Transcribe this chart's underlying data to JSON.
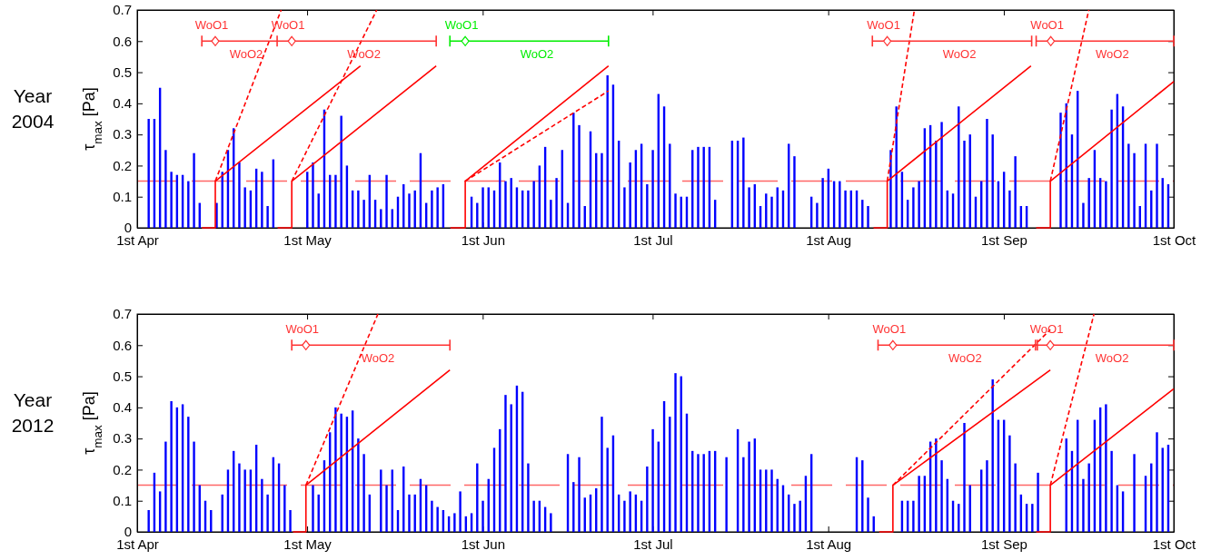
{
  "chart_data": [
    {
      "type": "bar",
      "title": "Year 2004",
      "ylabel": "τ$_{max}$ [Pa]",
      "xlim": [
        "2004-04-01",
        "2004-10-01"
      ],
      "xticks": [
        {
          "value": "2004-04-01",
          "label": "1st Apr"
        },
        {
          "value": "2004-05-01",
          "label": "1st May"
        },
        {
          "value": "2004-06-01",
          "label": "1st Jun"
        },
        {
          "value": "2004-07-01",
          "label": "1st Jul"
        },
        {
          "value": "2004-08-01",
          "label": "1st Aug"
        },
        {
          "value": "2004-09-01",
          "label": "1st Sep"
        },
        {
          "value": "2004-10-01",
          "label": "1st Oct"
        }
      ],
      "ylim": [
        0,
        0.7
      ],
      "yticks": [
        0,
        0.1,
        0.2,
        0.3,
        0.4,
        0.5,
        0.6,
        0.7
      ],
      "ref_lines": [
        {
          "axis": "y",
          "value": 0.15,
          "color": "#ff6666",
          "line_style": "dashed"
        }
      ],
      "x": [
        "2004-04-03",
        "2004-04-04",
        "2004-04-05",
        "2004-04-06",
        "2004-04-07",
        "2004-04-08",
        "2004-04-09",
        "2004-04-10",
        "2004-04-11",
        "2004-04-12",
        "2004-04-13",
        "2004-04-14",
        "2004-04-15",
        "2004-04-16",
        "2004-04-17",
        "2004-04-18",
        "2004-04-19",
        "2004-04-20",
        "2004-04-21",
        "2004-04-22",
        "2004-04-23",
        "2004-04-24",
        "2004-04-25",
        "2004-04-26",
        "2004-04-27",
        "2004-04-28",
        "2004-04-29",
        "2004-04-30",
        "2004-05-01",
        "2004-05-02",
        "2004-05-03",
        "2004-05-04",
        "2004-05-05",
        "2004-05-06",
        "2004-05-07",
        "2004-05-08",
        "2004-05-09",
        "2004-05-10",
        "2004-05-11",
        "2004-05-12",
        "2004-05-13",
        "2004-05-14",
        "2004-05-15",
        "2004-05-16",
        "2004-05-17",
        "2004-05-18",
        "2004-05-19",
        "2004-05-20",
        "2004-05-21",
        "2004-05-22",
        "2004-05-23",
        "2004-05-24",
        "2004-05-25",
        "2004-05-26",
        "2004-05-27",
        "2004-05-28",
        "2004-05-29",
        "2004-05-30",
        "2004-05-31",
        "2004-06-01",
        "2004-06-02",
        "2004-06-03",
        "2004-06-04",
        "2004-06-05",
        "2004-06-06",
        "2004-06-07",
        "2004-06-08",
        "2004-06-09",
        "2004-06-10",
        "2004-06-11",
        "2004-06-12",
        "2004-06-13",
        "2004-06-14",
        "2004-06-15",
        "2004-06-16",
        "2004-06-17",
        "2004-06-18",
        "2004-06-19",
        "2004-06-20",
        "2004-06-21",
        "2004-06-22",
        "2004-06-23",
        "2004-06-24",
        "2004-06-25",
        "2004-06-26",
        "2004-06-27",
        "2004-06-28",
        "2004-06-29",
        "2004-06-30",
        "2004-07-01",
        "2004-07-02",
        "2004-07-03",
        "2004-07-04",
        "2004-07-05",
        "2004-07-06",
        "2004-07-07",
        "2004-07-08",
        "2004-07-09",
        "2004-07-10",
        "2004-07-11",
        "2004-07-12",
        "2004-07-13",
        "2004-07-14",
        "2004-07-15",
        "2004-07-16",
        "2004-07-17",
        "2004-07-18",
        "2004-07-19",
        "2004-07-20",
        "2004-07-21",
        "2004-07-22",
        "2004-07-23",
        "2004-07-24",
        "2004-07-25",
        "2004-07-26",
        "2004-07-27",
        "2004-07-28",
        "2004-07-29",
        "2004-07-30",
        "2004-07-31",
        "2004-08-01",
        "2004-08-02",
        "2004-08-03",
        "2004-08-04",
        "2004-08-05",
        "2004-08-06",
        "2004-08-07",
        "2004-08-08",
        "2004-08-09",
        "2004-08-10",
        "2004-08-11",
        "2004-08-12",
        "2004-08-13",
        "2004-08-14",
        "2004-08-15",
        "2004-08-16",
        "2004-08-17",
        "2004-08-18",
        "2004-08-19",
        "2004-08-20",
        "2004-08-21",
        "2004-08-22",
        "2004-08-23",
        "2004-08-24",
        "2004-08-25",
        "2004-08-26",
        "2004-08-27",
        "2004-08-28",
        "2004-08-29",
        "2004-08-30",
        "2004-08-31",
        "2004-09-01",
        "2004-09-02",
        "2004-09-03",
        "2004-09-04",
        "2004-09-05",
        "2004-09-06",
        "2004-09-07",
        "2004-09-08",
        "2004-09-09",
        "2004-09-10",
        "2004-09-11",
        "2004-09-12",
        "2004-09-13",
        "2004-09-14",
        "2004-09-15",
        "2004-09-16",
        "2004-09-17",
        "2004-09-18",
        "2004-09-19",
        "2004-09-20",
        "2004-09-21",
        "2004-09-22",
        "2004-09-23",
        "2004-09-24",
        "2004-09-25",
        "2004-09-26",
        "2004-09-27",
        "2004-09-28",
        "2004-09-29",
        "2004-09-30"
      ],
      "series": [
        {
          "color": "#0000ff",
          "values": [
            0.35,
            0.35,
            0.45,
            0.25,
            0.18,
            0.17,
            0.17,
            0.15,
            0.24,
            0.08,
            null,
            null,
            0.08,
            0.18,
            0.25,
            0.32,
            0.21,
            0.13,
            0.12,
            0.19,
            0.18,
            0.07,
            0.22,
            null,
            null,
            null,
            null,
            null,
            0.18,
            0.21,
            0.11,
            0.38,
            0.17,
            0.17,
            0.36,
            0.2,
            0.12,
            0.12,
            0.09,
            0.17,
            0.09,
            0.06,
            0.17,
            0.06,
            0.1,
            0.14,
            0.11,
            0.12,
            0.24,
            0.08,
            0.12,
            0.13,
            0.14,
            null,
            null,
            null,
            null,
            0.1,
            0.08,
            0.13,
            0.13,
            0.12,
            0.21,
            0.15,
            0.16,
            0.13,
            0.12,
            0.12,
            0.15,
            0.2,
            0.26,
            0.09,
            0.16,
            0.25,
            0.08,
            0.37,
            0.33,
            0.07,
            0.31,
            0.24,
            0.24,
            0.49,
            0.46,
            0.28,
            0.13,
            0.21,
            0.25,
            0.27,
            0.14,
            0.25,
            0.43,
            0.39,
            0.27,
            0.11,
            0.1,
            0.1,
            0.25,
            0.26,
            0.26,
            0.26,
            0.09,
            null,
            null,
            0.28,
            0.28,
            0.29,
            0.13,
            0.14,
            0.07,
            0.11,
            0.1,
            0.13,
            0.12,
            0.27,
            0.23,
            null,
            null,
            0.1,
            0.08,
            0.16,
            0.19,
            0.15,
            0.15,
            0.12,
            0.12,
            0.12,
            0.09,
            0.07,
            null,
            null,
            null,
            0.25,
            0.39,
            0.18,
            0.09,
            0.13,
            0.15,
            0.32,
            0.33,
            0.28,
            0.34,
            0.12,
            0.11,
            0.39,
            0.28,
            0.3,
            0.1,
            0.15,
            0.35,
            0.3,
            0.15,
            0.18,
            0.12,
            0.23,
            0.07,
            0.07,
            null,
            null,
            null,
            null,
            null,
            0.37,
            0.4,
            0.3,
            0.44,
            0.08,
            0.16,
            0.25,
            0.16,
            0.15,
            0.38,
            0.43,
            0.39,
            0.27,
            0.24,
            0.07,
            0.27,
            0.12,
            0.27,
            0.16,
            0.14
          ]
        },
        {
          "type": "line",
          "color": "#ff0000",
          "x": [
            "2004-04-12T10:00",
            "2004-04-14T19:00",
            "2004-04-14T19:00",
            "2004-05-10T10:00"
          ],
          "values": [
            0,
            0,
            0.15,
            0.52
          ]
        },
        {
          "type": "line",
          "color": "#ff0000",
          "line_style": "dashed",
          "x": [
            "2004-04-14T19:00",
            "2004-04-26T10:00"
          ],
          "values": [
            0.15,
            0.7
          ]
        },
        {
          "type": "line",
          "color": "#ff0000",
          "x": [
            "2004-04-25T19:00",
            "2004-04-28T07:00",
            "2004-04-28T07:00",
            "2004-05-23T19:00"
          ],
          "values": [
            0,
            0,
            0.15,
            0.52
          ]
        },
        {
          "type": "line",
          "color": "#ff0000",
          "line_style": "dashed",
          "x": [
            "2004-04-28T07:00",
            "2004-05-13T07:00"
          ],
          "values": [
            0.15,
            0.7
          ]
        },
        {
          "type": "line",
          "color": "#ff0000",
          "x": [
            "2004-05-26T07:00",
            "2004-05-28T22:00",
            "2004-05-28T22:00",
            "2004-06-23T05:00"
          ],
          "values": [
            0,
            0,
            0.15,
            0.52
          ]
        },
        {
          "type": "line",
          "color": "#ff0000",
          "line_style": "dashed",
          "x": [
            "2004-05-28T22:00",
            "2004-06-23T05:00"
          ],
          "values": [
            0.15,
            0.44
          ]
        },
        {
          "type": "line",
          "color": "#ff0000",
          "x": [
            "2004-08-09T00:00",
            "2004-08-11T10:00",
            "2004-08-11T10:00",
            "2004-09-05T19:00"
          ],
          "values": [
            0,
            0,
            0.15,
            0.52
          ]
        },
        {
          "type": "line",
          "color": "#ff0000",
          "line_style": "dashed",
          "x": [
            "2004-08-11T10:00",
            "2004-08-16T05:00"
          ],
          "values": [
            0.15,
            0.7
          ]
        },
        {
          "type": "line",
          "color": "#ff0000",
          "x": [
            "2004-09-06T17:00",
            "2004-09-09T05:00",
            "2004-09-09T05:00",
            "2004-10-01T00:00"
          ],
          "values": [
            0,
            0,
            0.15,
            0.47
          ]
        },
        {
          "type": "line",
          "color": "#ff0000",
          "line_style": "dashed",
          "x": [
            "2004-09-09T05:00",
            "2004-09-16T00:00"
          ],
          "values": [
            0.15,
            0.7
          ]
        },
        {
          "type": "line",
          "color": "#ff3333",
          "x": [
            "2004-04-12T10:00",
            "2004-04-25T17:00",
            "2004-05-23T19:00"
          ],
          "values": [
            0.6,
            0.6,
            0.6
          ]
        },
        {
          "type": "line",
          "color": "#00ee00",
          "x": [
            "2004-05-26T05:00",
            "2004-06-23T05:00"
          ],
          "values": [
            0.6,
            0.6
          ]
        },
        {
          "type": "line",
          "color": "#ff3333",
          "x": [
            "2004-08-08T19:00",
            "2004-09-05T22:00"
          ],
          "values": [
            0.6,
            0.6
          ]
        },
        {
          "type": "line",
          "color": "#ff3333",
          "x": [
            "2004-09-06T17:00",
            "2004-10-01T00:00"
          ],
          "values": [
            0.6,
            0.6
          ]
        },
        {
          "type": "scatter",
          "marker": "diamond",
          "x": [
            "2004-04-14T19:00",
            "2004-04-28T07:00",
            "2004-05-28T22:00",
            "2004-08-11T10:00",
            "2004-09-09T07:00"
          ],
          "values": [
            0.6,
            0.6,
            0.6,
            0.6,
            0.6
          ],
          "colors": [
            "#ff3333",
            "#ff3333",
            "#00ee00",
            "#ff3333",
            "#ff3333"
          ]
        }
      ],
      "annotations": [
        "WoO1",
        "WoO2",
        "WoO1",
        "WoO2",
        "WoO1",
        "WoO2",
        "WoO1",
        "WoO2",
        "WoO1",
        "WoO2"
      ]
    },
    {
      "type": "bar",
      "title": "Year 2012",
      "ylabel": "τ$_{max}$ [Pa]",
      "xlim": [
        "2012-04-01",
        "2012-10-01"
      ],
      "xticks": [
        {
          "value": "2012-04-01",
          "label": "1st Apr"
        },
        {
          "value": "2012-05-01",
          "label": "1st May"
        },
        {
          "value": "2012-06-01",
          "label": "1st Jun"
        },
        {
          "value": "2012-07-01",
          "label": "1st Jul"
        },
        {
          "value": "2012-08-01",
          "label": "1st Aug"
        },
        {
          "value": "2012-09-01",
          "label": "1st Sep"
        },
        {
          "value": "2012-10-01",
          "label": "1st Oct"
        }
      ],
      "ylim": [
        0,
        0.7
      ],
      "yticks": [
        0,
        0.1,
        0.2,
        0.3,
        0.4,
        0.5,
        0.6,
        0.7
      ],
      "ref_lines": [
        {
          "axis": "y",
          "value": 0.15,
          "color": "#ff6666",
          "line_style": "dashed"
        }
      ],
      "x": [
        "2012-04-03",
        "2012-04-04",
        "2012-04-05",
        "2012-04-06",
        "2012-04-07",
        "2012-04-08",
        "2012-04-09",
        "2012-04-10",
        "2012-04-11",
        "2012-04-12",
        "2012-04-13",
        "2012-04-14",
        "2012-04-15",
        "2012-04-16",
        "2012-04-17",
        "2012-04-18",
        "2012-04-19",
        "2012-04-20",
        "2012-04-21",
        "2012-04-22",
        "2012-04-23",
        "2012-04-24",
        "2012-04-25",
        "2012-04-26",
        "2012-04-27",
        "2012-04-28",
        "2012-04-29",
        "2012-04-30",
        "2012-05-01",
        "2012-05-02",
        "2012-05-03",
        "2012-05-04",
        "2012-05-05",
        "2012-05-06",
        "2012-05-07",
        "2012-05-08",
        "2012-05-09",
        "2012-05-10",
        "2012-05-11",
        "2012-05-12",
        "2012-05-13",
        "2012-05-14",
        "2012-05-15",
        "2012-05-16",
        "2012-05-17",
        "2012-05-18",
        "2012-05-19",
        "2012-05-20",
        "2012-05-21",
        "2012-05-22",
        "2012-05-23",
        "2012-05-24",
        "2012-05-25",
        "2012-05-26",
        "2012-05-27",
        "2012-05-28",
        "2012-05-29",
        "2012-05-30",
        "2012-05-31",
        "2012-06-01",
        "2012-06-02",
        "2012-06-03",
        "2012-06-04",
        "2012-06-05",
        "2012-06-06",
        "2012-06-07",
        "2012-06-08",
        "2012-06-09",
        "2012-06-10",
        "2012-06-11",
        "2012-06-12",
        "2012-06-13",
        "2012-06-14",
        "2012-06-15",
        "2012-06-16",
        "2012-06-17",
        "2012-06-18",
        "2012-06-19",
        "2012-06-20",
        "2012-06-21",
        "2012-06-22",
        "2012-06-23",
        "2012-06-24",
        "2012-06-25",
        "2012-06-26",
        "2012-06-27",
        "2012-06-28",
        "2012-06-29",
        "2012-06-30",
        "2012-07-01",
        "2012-07-02",
        "2012-07-03",
        "2012-07-04",
        "2012-07-05",
        "2012-07-06",
        "2012-07-07",
        "2012-07-08",
        "2012-07-09",
        "2012-07-10",
        "2012-07-11",
        "2012-07-12",
        "2012-07-13",
        "2012-07-14",
        "2012-07-15",
        "2012-07-16",
        "2012-07-17",
        "2012-07-18",
        "2012-07-19",
        "2012-07-20",
        "2012-07-21",
        "2012-07-22",
        "2012-07-23",
        "2012-07-24",
        "2012-07-25",
        "2012-07-26",
        "2012-07-27",
        "2012-07-28",
        "2012-07-29",
        "2012-07-30",
        "2012-07-31",
        "2012-08-01",
        "2012-08-02",
        "2012-08-03",
        "2012-08-04",
        "2012-08-05",
        "2012-08-06",
        "2012-08-07",
        "2012-08-08",
        "2012-08-09",
        "2012-08-10",
        "2012-08-11",
        "2012-08-12",
        "2012-08-13",
        "2012-08-14",
        "2012-08-15",
        "2012-08-16",
        "2012-08-17",
        "2012-08-18",
        "2012-08-19",
        "2012-08-20",
        "2012-08-21",
        "2012-08-22",
        "2012-08-23",
        "2012-08-24",
        "2012-08-25",
        "2012-08-26",
        "2012-08-27",
        "2012-08-28",
        "2012-08-29",
        "2012-08-30",
        "2012-08-31",
        "2012-09-01",
        "2012-09-02",
        "2012-09-03",
        "2012-09-04",
        "2012-09-05",
        "2012-09-06",
        "2012-09-07",
        "2012-09-08",
        "2012-09-09",
        "2012-09-10",
        "2012-09-11",
        "2012-09-12",
        "2012-09-13",
        "2012-09-14",
        "2012-09-15",
        "2012-09-16",
        "2012-09-17",
        "2012-09-18",
        "2012-09-19",
        "2012-09-20",
        "2012-09-21",
        "2012-09-22",
        "2012-09-23",
        "2012-09-24",
        "2012-09-25",
        "2012-09-26",
        "2012-09-27",
        "2012-09-28",
        "2012-09-29",
        "2012-09-30"
      ],
      "series": [
        {
          "color": "#0000ff",
          "values": [
            0.07,
            0.19,
            0.13,
            0.29,
            0.42,
            0.4,
            0.41,
            0.37,
            0.29,
            0.15,
            0.1,
            0.07,
            null,
            0.12,
            0.2,
            0.26,
            0.22,
            0.2,
            0.2,
            0.28,
            0.17,
            0.12,
            0.24,
            0.22,
            0.15,
            0.07,
            null,
            null,
            null,
            0.15,
            0.12,
            0.23,
            0.32,
            0.4,
            0.38,
            0.37,
            0.39,
            0.3,
            0.25,
            0.12,
            null,
            0.2,
            0.15,
            0.2,
            0.07,
            0.21,
            0.12,
            0.12,
            0.17,
            0.15,
            0.1,
            0.08,
            0.07,
            0.05,
            0.06,
            0.13,
            0.05,
            0.06,
            0.22,
            0.1,
            0.17,
            0.27,
            0.33,
            0.44,
            0.41,
            0.47,
            0.45,
            0.22,
            0.1,
            0.1,
            0.08,
            0.06,
            null,
            null,
            0.25,
            0.16,
            0.24,
            0.11,
            0.12,
            0.14,
            0.37,
            0.27,
            0.31,
            0.12,
            0.1,
            0.13,
            0.12,
            0.1,
            0.21,
            0.33,
            0.29,
            0.42,
            0.37,
            0.51,
            0.5,
            0.38,
            0.26,
            0.25,
            0.25,
            0.26,
            0.26,
            null,
            0.24,
            null,
            0.33,
            0.24,
            0.29,
            0.3,
            0.2,
            0.2,
            0.2,
            0.17,
            0.15,
            0.12,
            0.09,
            0.1,
            0.18,
            0.25,
            null,
            null,
            null,
            null,
            null,
            null,
            null,
            0.24,
            0.23,
            0.11,
            0.05,
            null,
            null,
            null,
            null,
            0.1,
            0.1,
            0.1,
            0.18,
            0.18,
            0.29,
            0.3,
            0.23,
            0.17,
            0.1,
            0.09,
            0.35,
            0.15,
            null,
            0.2,
            0.23,
            0.49,
            0.36,
            0.36,
            0.31,
            0.22,
            0.12,
            0.09,
            0.09,
            0.19,
            null,
            null,
            null,
            null,
            0.3,
            0.26,
            0.36,
            0.17,
            0.22,
            0.36,
            0.4,
            0.41,
            0.26,
            0.15,
            0.13,
            null,
            0.25,
            null,
            0.18,
            0.22,
            0.32,
            0.27,
            0.28
          ]
        },
        {
          "type": "line",
          "color": "#ff0000",
          "x": [
            "2012-04-28T12:00",
            "2012-04-30T19:00",
            "2012-04-30T19:00",
            "2012-05-26T05:00"
          ],
          "values": [
            0,
            0,
            0.15,
            0.52
          ]
        },
        {
          "type": "line",
          "color": "#ff0000",
          "line_style": "dashed",
          "x": [
            "2012-04-30T19:00",
            "2012-05-13T12:00"
          ],
          "values": [
            0.15,
            0.7
          ]
        },
        {
          "type": "line",
          "color": "#ff0000",
          "x": [
            "2012-08-10T00:00",
            "2012-08-12T10:00",
            "2012-08-12T10:00",
            "2012-09-09T05:00"
          ],
          "values": [
            0,
            0,
            0.15,
            0.52
          ]
        },
        {
          "type": "line",
          "color": "#ff0000",
          "line_style": "dashed",
          "x": [
            "2012-08-12T10:00",
            "2012-09-09T05:00"
          ],
          "values": [
            0.15,
            0.65
          ]
        },
        {
          "type": "line",
          "color": "#ff0000",
          "x": [
            "2012-09-06T17:00",
            "2012-09-09T05:00",
            "2012-09-09T05:00",
            "2012-10-01T00:00"
          ],
          "values": [
            0,
            0,
            0.15,
            0.46
          ]
        },
        {
          "type": "line",
          "color": "#ff0000",
          "line_style": "dashed",
          "x": [
            "2012-09-09T05:00",
            "2012-09-16T22:00"
          ],
          "values": [
            0.15,
            0.7
          ]
        },
        {
          "type": "line",
          "color": "#ff3333",
          "x": [
            "2012-04-28T07:00",
            "2012-05-26T05:00"
          ],
          "values": [
            0.6,
            0.6
          ]
        },
        {
          "type": "line",
          "color": "#ff3333",
          "x": [
            "2012-08-09T19:00",
            "2012-09-06T22:00"
          ],
          "values": [
            0.6,
            0.6
          ]
        },
        {
          "type": "line",
          "color": "#ff3333",
          "x": [
            "2012-09-06T14:00",
            "2012-10-01T00:00"
          ],
          "values": [
            0.6,
            0.6
          ]
        },
        {
          "type": "scatter",
          "marker": "diamond",
          "x": [
            "2012-04-30T19:00",
            "2012-08-12T10:00",
            "2012-09-09T05:00"
          ],
          "values": [
            0.6,
            0.6,
            0.6
          ],
          "colors": [
            "#ff3333",
            "#ff3333",
            "#ff3333"
          ]
        }
      ],
      "annotations": [
        "WoO1",
        "WoO2",
        "WoO1",
        "WoO2",
        "WoO1",
        "WoO2"
      ]
    }
  ]
}
